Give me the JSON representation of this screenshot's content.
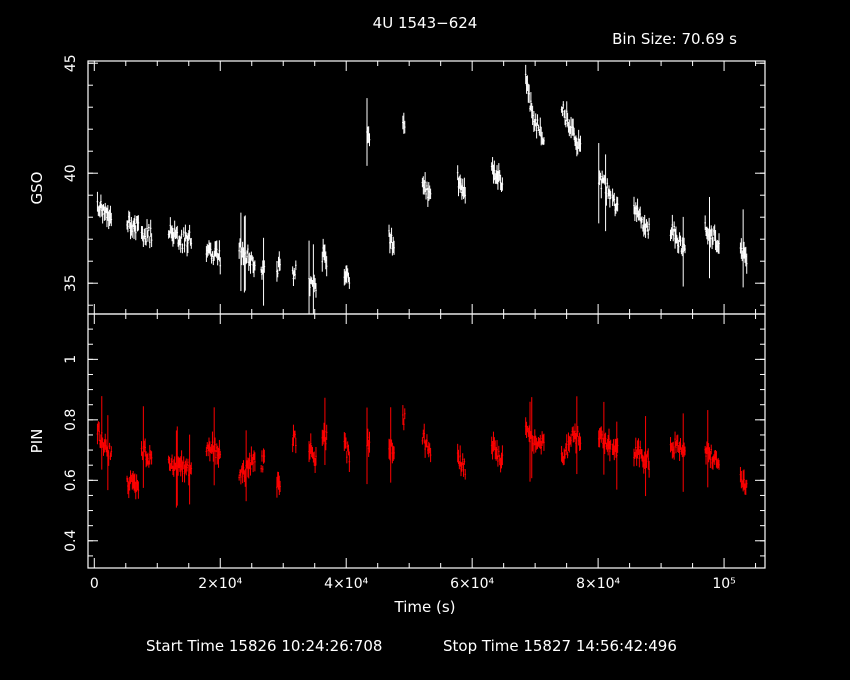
{
  "title": "4U 1543−624",
  "bin_size": "Bin Size: 70.69 s",
  "footer": {
    "start": "Start Time 15826 10:24:26:708",
    "stop": "Stop Time 15827 14:56:42:496"
  },
  "colors": {
    "background": "#000000",
    "axes": "#ffffff",
    "gso": "#ffffff",
    "pin": "#ff0000"
  },
  "chart_data": [
    {
      "type": "scatter",
      "style": "light curve with vertical error bars",
      "ylabel": "GSO",
      "xlim": [
        -1000,
        106500
      ],
      "ylim": [
        33.6,
        45.1
      ],
      "yticks": [
        35,
        40,
        45
      ],
      "ytick_labels": [
        "35",
        "40",
        "45"
      ],
      "segments": [
        {
          "x": [
            500,
            2700
          ],
          "y": [
            38.6,
            37.8
          ]
        },
        {
          "x": [
            5200,
            7000
          ],
          "y": [
            37.8,
            37.5
          ]
        },
        {
          "x": [
            7500,
            9100
          ],
          "y": [
            37.2,
            37.2
          ]
        },
        {
          "x": [
            11800,
            14000
          ],
          "y": [
            37.5,
            36.9
          ]
        },
        {
          "x": [
            14200,
            15400
          ],
          "y": [
            37.0,
            37.0
          ]
        },
        {
          "x": [
            17800,
            20000
          ],
          "y": [
            36.6,
            36.1
          ]
        },
        {
          "x": [
            23000,
            25500
          ],
          "y": [
            36.7,
            35.9
          ]
        },
        {
          "x": [
            26500,
            27000
          ],
          "y": [
            35.5,
            35.5
          ]
        },
        {
          "x": [
            29000,
            29500
          ],
          "y": [
            35.7,
            35.7
          ]
        },
        {
          "x": [
            31500,
            32000
          ],
          "y": [
            35.5,
            35.5
          ]
        },
        {
          "x": [
            34100,
            35200
          ],
          "y": [
            35.0,
            34.7
          ]
        },
        {
          "x": [
            36200,
            36900
          ],
          "y": [
            36.3,
            36.1
          ]
        },
        {
          "x": [
            39700,
            40500
          ],
          "y": [
            35.5,
            35.2
          ]
        },
        {
          "x": [
            43300,
            43700
          ],
          "y": [
            42.0,
            41.8
          ]
        },
        {
          "x": [
            46800,
            47600
          ],
          "y": [
            37.1,
            36.8
          ]
        },
        {
          "x": [
            49000,
            49300
          ],
          "y": [
            42.6,
            42.2
          ]
        },
        {
          "x": [
            52100,
            53400
          ],
          "y": [
            39.5,
            39.0
          ]
        },
        {
          "x": [
            57700,
            58900
          ],
          "y": [
            39.7,
            39.0
          ]
        },
        {
          "x": [
            63100,
            64800
          ],
          "y": [
            40.2,
            39.6
          ]
        },
        {
          "x": [
            68500,
            69600
          ],
          "y": [
            44.4,
            42.5
          ]
        },
        {
          "x": [
            69800,
            71400
          ],
          "y": [
            42.4,
            41.6
          ]
        },
        {
          "x": [
            74200,
            75700
          ],
          "y": [
            43.1,
            42.0
          ]
        },
        {
          "x": [
            75900,
            77200
          ],
          "y": [
            42.0,
            41.0
          ]
        },
        {
          "x": [
            80100,
            82000
          ],
          "y": [
            39.8,
            39.0
          ]
        },
        {
          "x": [
            82300,
            83100
          ],
          "y": [
            38.6,
            38.4
          ]
        },
        {
          "x": [
            85700,
            88100
          ],
          "y": [
            38.3,
            37.5
          ]
        },
        {
          "x": [
            91500,
            93800
          ],
          "y": [
            37.5,
            36.5
          ]
        },
        {
          "x": [
            97000,
            99200
          ],
          "y": [
            37.4,
            36.9
          ]
        },
        {
          "x": [
            102600,
            103600
          ],
          "y": [
            36.7,
            35.9
          ]
        }
      ]
    },
    {
      "type": "scatter",
      "style": "light curve with vertical error bars",
      "ylabel": "PIN",
      "xlabel": "Time (s)",
      "xlim": [
        -1000,
        106500
      ],
      "ylim": [
        0.31,
        1.15
      ],
      "yticks": [
        0.4,
        0.6,
        0.8,
        1
      ],
      "ytick_labels": [
        "0.4",
        "0.6",
        "0.8",
        "1"
      ],
      "xticks": [
        0,
        20000,
        40000,
        60000,
        80000,
        100000
      ],
      "xtick_labels": [
        "0",
        "2×10⁴",
        "4×10⁴",
        "6×10⁴",
        "8×10⁴",
        "10⁵"
      ],
      "segments": [
        {
          "x": [
            500,
            2700
          ],
          "y": [
            0.76,
            0.68
          ]
        },
        {
          "x": [
            5200,
            7000
          ],
          "y": [
            0.6,
            0.56
          ]
        },
        {
          "x": [
            7500,
            9100
          ],
          "y": [
            0.7,
            0.66
          ]
        },
        {
          "x": [
            11800,
            14000
          ],
          "y": [
            0.65,
            0.64
          ]
        },
        {
          "x": [
            14200,
            15400
          ],
          "y": [
            0.64,
            0.64
          ]
        },
        {
          "x": [
            17800,
            20000
          ],
          "y": [
            0.72,
            0.69
          ]
        },
        {
          "x": [
            23000,
            25500
          ],
          "y": [
            0.6,
            0.68
          ]
        },
        {
          "x": [
            26500,
            27000
          ],
          "y": [
            0.66,
            0.66
          ]
        },
        {
          "x": [
            29000,
            29500
          ],
          "y": [
            0.58,
            0.58
          ]
        },
        {
          "x": [
            31500,
            32000
          ],
          "y": [
            0.74,
            0.74
          ]
        },
        {
          "x": [
            34100,
            35200
          ],
          "y": [
            0.72,
            0.66
          ]
        },
        {
          "x": [
            36200,
            36900
          ],
          "y": [
            0.76,
            0.74
          ]
        },
        {
          "x": [
            39700,
            40500
          ],
          "y": [
            0.72,
            0.68
          ]
        },
        {
          "x": [
            43300,
            43700
          ],
          "y": [
            0.72,
            0.72
          ]
        },
        {
          "x": [
            46800,
            47600
          ],
          "y": [
            0.7,
            0.7
          ]
        },
        {
          "x": [
            49000,
            49300
          ],
          "y": [
            0.8,
            0.8
          ]
        },
        {
          "x": [
            52100,
            53400
          ],
          "y": [
            0.74,
            0.7
          ]
        },
        {
          "x": [
            57700,
            58900
          ],
          "y": [
            0.68,
            0.64
          ]
        },
        {
          "x": [
            63100,
            64800
          ],
          "y": [
            0.72,
            0.66
          ]
        },
        {
          "x": [
            68500,
            69600
          ],
          "y": [
            0.76,
            0.74
          ]
        },
        {
          "x": [
            69800,
            71400
          ],
          "y": [
            0.74,
            0.72
          ]
        },
        {
          "x": [
            74200,
            75700
          ],
          "y": [
            0.68,
            0.72
          ]
        },
        {
          "x": [
            75900,
            77200
          ],
          "y": [
            0.74,
            0.74
          ]
        },
        {
          "x": [
            80100,
            82000
          ],
          "y": [
            0.74,
            0.72
          ]
        },
        {
          "x": [
            82300,
            83100
          ],
          "y": [
            0.7,
            0.7
          ]
        },
        {
          "x": [
            85700,
            88100
          ],
          "y": [
            0.7,
            0.66
          ]
        },
        {
          "x": [
            91500,
            93800
          ],
          "y": [
            0.72,
            0.7
          ]
        },
        {
          "x": [
            97000,
            99200
          ],
          "y": [
            0.7,
            0.66
          ]
        },
        {
          "x": [
            102600,
            103600
          ],
          "y": [
            0.62,
            0.58
          ]
        }
      ]
    }
  ]
}
